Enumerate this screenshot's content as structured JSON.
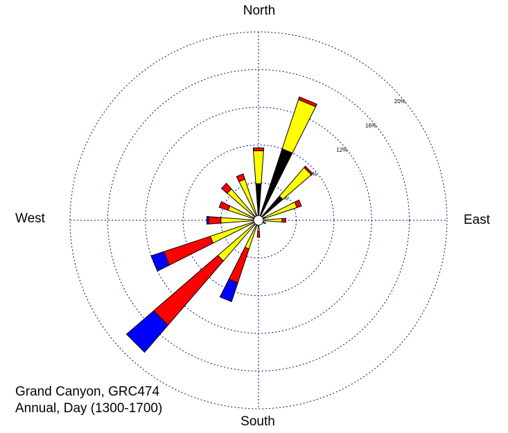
{
  "chart_data": {
    "type": "rose",
    "labels": {
      "north": "North",
      "east": "East",
      "south": "South",
      "west": "West"
    },
    "caption": [
      "Grand Canyon, GRC474",
      "Annual, Day (1300-1700)"
    ],
    "angles": [
      0,
      22.5,
      45,
      67.5,
      90,
      112.5,
      135,
      157.5,
      180,
      202.5,
      225,
      247.5,
      270,
      292.5,
      315,
      337.5
    ],
    "series": [
      {
        "color": "#000000",
        "values": [
          3.9,
          8.0,
          3.4,
          0.8,
          0.3,
          0.2,
          0,
          0,
          0,
          0.3,
          0.2,
          0,
          0,
          0,
          0,
          0
        ]
      },
      {
        "color": "#ffff00",
        "values": [
          3.5,
          5.5,
          4.0,
          3.5,
          2.2,
          0.6,
          0.4,
          0.3,
          1.2,
          2.9,
          5.5,
          5.4,
          4.0,
          3.4,
          4.4,
          4.6
        ]
      },
      {
        "color": "#ff0000",
        "values": [
          0.3,
          0.3,
          0.2,
          0.5,
          0.4,
          0,
          0,
          0,
          0.6,
          3.8,
          9.0,
          5.2,
          1.3,
          1.0,
          0.8,
          0.6
        ]
      },
      {
        "color": "#0000ff",
        "values": [
          0,
          0,
          0,
          0,
          0,
          0,
          0,
          0,
          0,
          2.1,
          3.8,
          1.4,
          0.2,
          0,
          0,
          0
        ]
      }
    ],
    "rlim": [
      0,
      20
    ],
    "rticks": [
      {
        "value": 4,
        "label": "4%"
      },
      {
        "value": 8,
        "label": "8%"
      },
      {
        "value": 12,
        "label": "12%"
      },
      {
        "value": 16,
        "label": "16%"
      },
      {
        "value": 20,
        "label": "20%"
      }
    ],
    "grid": true
  }
}
